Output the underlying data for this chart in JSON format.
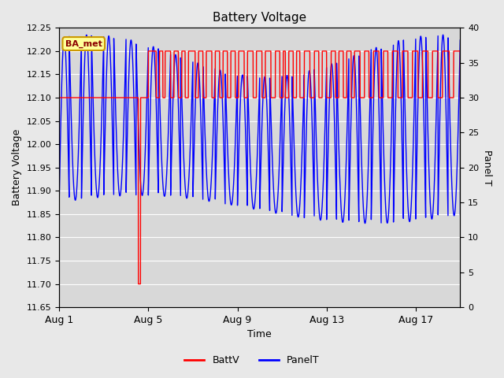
{
  "title": "Battery Voltage",
  "xlabel": "Time",
  "ylabel_left": "Battery Voltage",
  "ylabel_right": "Panel T",
  "ylim_left": [
    11.65,
    12.25
  ],
  "ylim_right": [
    0,
    40
  ],
  "xtick_labels": [
    "Aug 1",
    "Aug 5",
    "Aug 9",
    "Aug 13",
    "Aug 17"
  ],
  "xtick_positions": [
    0,
    4,
    8,
    12,
    16
  ],
  "yticks_left": [
    11.65,
    11.7,
    11.75,
    11.8,
    11.85,
    11.9,
    11.95,
    12.0,
    12.05,
    12.1,
    12.15,
    12.2,
    12.25
  ],
  "yticks_right": [
    0,
    5,
    10,
    15,
    20,
    25,
    30,
    35,
    40
  ],
  "batt_color": "#FF0000",
  "panel_color": "#0000FF",
  "fig_bg_color": "#E8E8E8",
  "plot_bg_color": "#D8D8D8",
  "legend_label_batt": "BattV",
  "legend_label_panel": "PanelT",
  "annotation_text": "BA_met",
  "annotation_bg": "#FFFF99",
  "annotation_border": "#CC9900",
  "xlim": [
    0,
    18
  ],
  "figsize": [
    6.4,
    4.8
  ],
  "dpi": 100
}
